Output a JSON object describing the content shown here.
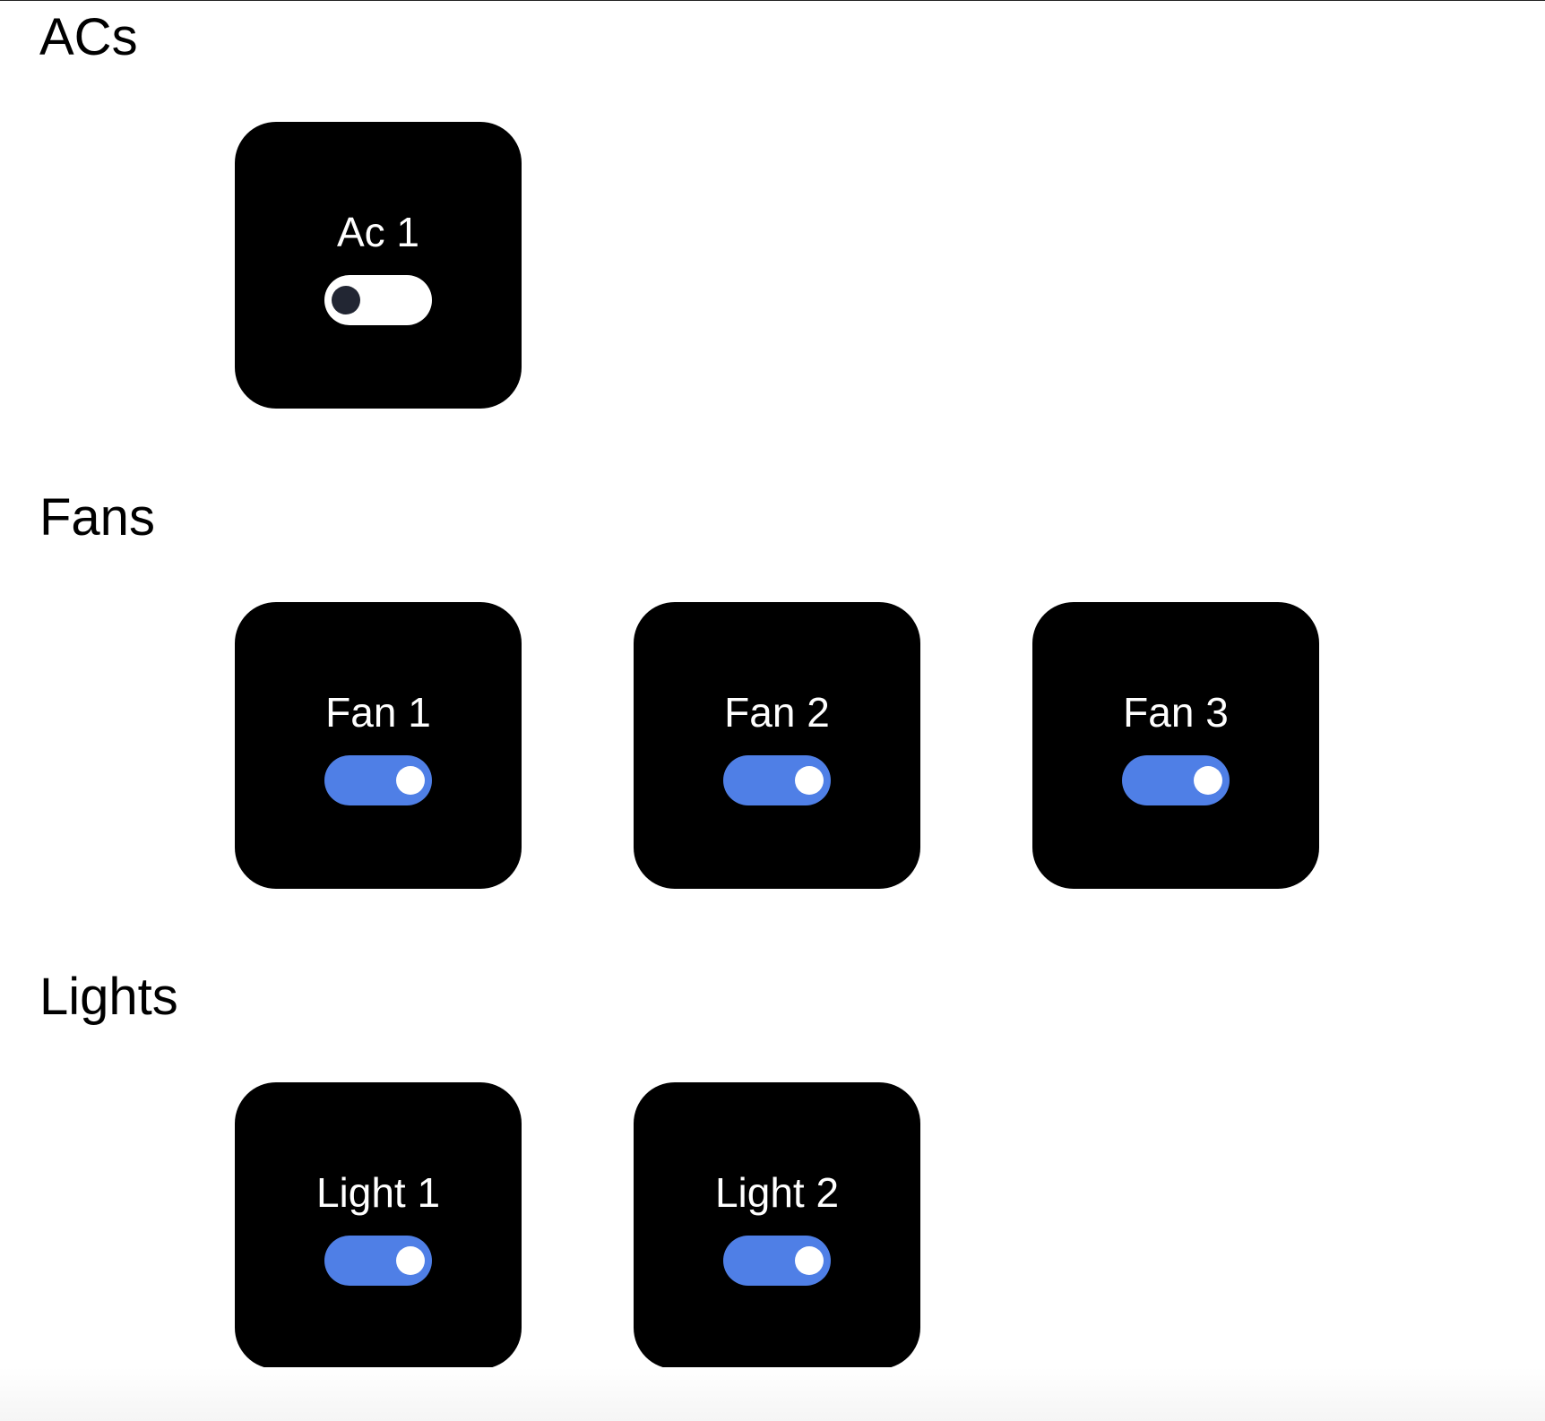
{
  "sections": [
    {
      "title": "ACs",
      "devices": [
        {
          "label": "Ac 1",
          "on": false
        }
      ]
    },
    {
      "title": "Fans",
      "devices": [
        {
          "label": "Fan 1",
          "on": true
        },
        {
          "label": "Fan 2",
          "on": true
        },
        {
          "label": "Fan 3",
          "on": true
        }
      ]
    },
    {
      "title": "Lights",
      "devices": [
        {
          "label": "Light 1",
          "on": true
        },
        {
          "label": "Light 2",
          "on": true
        }
      ]
    }
  ],
  "colors": {
    "card_background": "#000000",
    "toggle_on": "#4f7fe6",
    "toggle_off": "#ffffff",
    "knob_off": "#222633"
  }
}
